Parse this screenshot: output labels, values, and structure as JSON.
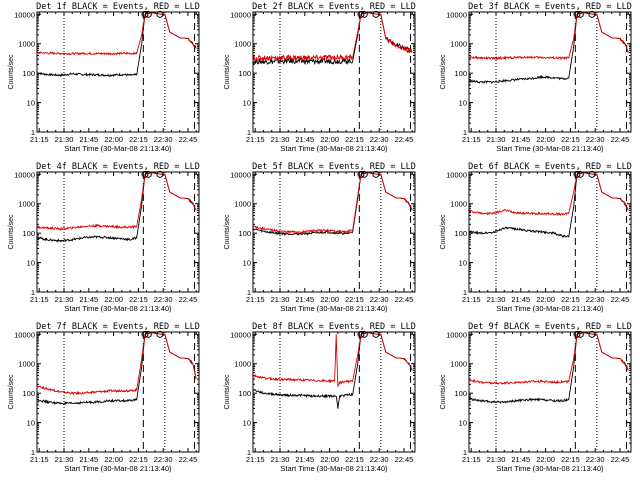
{
  "common": {
    "xlabel": "Start Time (30-Mar-08 21:13:40)",
    "ylabel": "Counts/sec",
    "xticks": [
      "21:15",
      "21:30",
      "21:45",
      "22:00",
      "22:15",
      "22:30",
      "22:45"
    ],
    "yticks": [
      "1",
      "10",
      "100",
      "1000",
      "10000"
    ],
    "xlim": [
      "21:13:40",
      "22:51:40"
    ],
    "ylim": [
      1,
      12000
    ],
    "yscale": "log",
    "series_colors": {
      "events": "#000000",
      "lld": "#e00000"
    }
  },
  "chart_data": [
    {
      "type": "line",
      "title": "Det 1f BLACK = Events, RED = LLD",
      "series": [
        {
          "color": "#000000",
          "x": [
            "21:14",
            "21:20",
            "21:28",
            "21:35",
            "21:42",
            "21:50",
            "21:58",
            "22:05",
            "22:10",
            "22:14",
            "22:17",
            "22:19",
            "22:22",
            "22:25",
            "22:29",
            "22:31",
            "22:34",
            "22:40",
            "22:45",
            "22:48",
            "22:50"
          ],
          "values": [
            100,
            90,
            85,
            95,
            90,
            88,
            85,
            90,
            85,
            88,
            1000,
            10000,
            11000,
            11000,
            10000,
            10000,
            2500,
            1600,
            1500,
            1000,
            700
          ]
        },
        {
          "color": "#e00000",
          "x": [
            "21:14",
            "21:20",
            "21:28",
            "21:35",
            "21:42",
            "21:50",
            "21:58",
            "22:05",
            "22:10",
            "22:14",
            "22:17",
            "22:19",
            "22:22",
            "22:25",
            "22:29",
            "22:31",
            "22:34",
            "22:40",
            "22:45",
            "22:48",
            "22:50"
          ],
          "values": [
            500,
            480,
            470,
            460,
            470,
            465,
            460,
            470,
            470,
            470,
            2000,
            10000,
            11000,
            11000,
            10000,
            10000,
            2500,
            1600,
            1500,
            1000,
            700
          ]
        }
      ]
    },
    {
      "type": "line",
      "title": "Det 2f BLACK = Events, RED = LLD",
      "series": [
        {
          "color": "#000000",
          "x": [
            "21:14",
            "21:20",
            "21:28",
            "21:35",
            "21:42",
            "21:50",
            "21:58",
            "22:05",
            "22:10",
            "22:14",
            "22:17",
            "22:19",
            "22:22",
            "22:25",
            "22:29",
            "22:31",
            "22:34",
            "22:40",
            "22:45",
            "22:48",
            "22:50"
          ],
          "values": [
            250,
            250,
            250,
            260,
            255,
            250,
            255,
            260,
            255,
            260,
            2000,
            10000,
            11000,
            11000,
            10000,
            10000,
            1500,
            900,
            700,
            600,
            500
          ]
        },
        {
          "color": "#e00000",
          "x": [
            "21:14",
            "21:20",
            "21:28",
            "21:35",
            "21:42",
            "21:50",
            "21:58",
            "22:05",
            "22:10",
            "22:14",
            "22:17",
            "22:19",
            "22:22",
            "22:25",
            "22:29",
            "22:31",
            "22:34",
            "22:40",
            "22:45",
            "22:48",
            "22:50"
          ],
          "values": [
            320,
            330,
            330,
            340,
            335,
            330,
            340,
            345,
            340,
            345,
            2500,
            10000,
            11000,
            11000,
            10000,
            10000,
            1500,
            900,
            700,
            600,
            500
          ]
        }
      ]
    },
    {
      "type": "line",
      "title": "Det 3f BLACK = Events, RED = LLD",
      "series": [
        {
          "color": "#000000",
          "x": [
            "21:14",
            "21:20",
            "21:28",
            "21:35",
            "21:42",
            "21:50",
            "21:58",
            "22:05",
            "22:10",
            "22:14",
            "22:17",
            "22:19",
            "22:22",
            "22:25",
            "22:29",
            "22:31",
            "22:34",
            "22:40",
            "22:45",
            "22:48",
            "22:50"
          ],
          "values": [
            55,
            50,
            50,
            55,
            60,
            65,
            75,
            70,
            65,
            68,
            800,
            10000,
            11000,
            11000,
            10000,
            10000,
            2500,
            1600,
            1500,
            1000,
            500
          ]
        },
        {
          "color": "#e00000",
          "x": [
            "21:14",
            "21:20",
            "21:28",
            "21:35",
            "21:42",
            "21:50",
            "21:58",
            "22:05",
            "22:10",
            "22:14",
            "22:17",
            "22:19",
            "22:22",
            "22:25",
            "22:29",
            "22:31",
            "22:34",
            "22:40",
            "22:45",
            "22:48",
            "22:50"
          ],
          "values": [
            350,
            330,
            320,
            330,
            340,
            350,
            340,
            330,
            320,
            330,
            1500,
            10000,
            11000,
            11000,
            10000,
            10000,
            2500,
            1600,
            1500,
            1000,
            500
          ]
        }
      ]
    },
    {
      "type": "line",
      "title": "Det 4f BLACK = Events, RED = LLD",
      "series": [
        {
          "color": "#000000",
          "x": [
            "21:14",
            "21:20",
            "21:28",
            "21:35",
            "21:42",
            "21:50",
            "21:58",
            "22:05",
            "22:10",
            "22:14",
            "22:17",
            "22:19",
            "22:22",
            "22:25",
            "22:29",
            "22:31",
            "22:34",
            "22:40",
            "22:45",
            "22:48",
            "22:50"
          ],
          "values": [
            70,
            60,
            55,
            60,
            70,
            75,
            70,
            65,
            60,
            70,
            900,
            10000,
            11000,
            11000,
            10000,
            10000,
            2500,
            1600,
            1500,
            1000,
            600
          ]
        },
        {
          "color": "#e00000",
          "x": [
            "21:14",
            "21:20",
            "21:28",
            "21:35",
            "21:42",
            "21:50",
            "21:58",
            "22:05",
            "22:10",
            "22:14",
            "22:17",
            "22:19",
            "22:22",
            "22:25",
            "22:29",
            "22:31",
            "22:34",
            "22:40",
            "22:45",
            "22:48",
            "22:50"
          ],
          "values": [
            160,
            150,
            140,
            150,
            170,
            180,
            170,
            160,
            160,
            170,
            1500,
            10000,
            11000,
            11000,
            10000,
            10000,
            2500,
            1600,
            1500,
            1000,
            600
          ]
        }
      ]
    },
    {
      "type": "line",
      "title": "Det 5f BLACK = Events, RED = LLD",
      "series": [
        {
          "color": "#000000",
          "x": [
            "21:14",
            "21:20",
            "21:28",
            "21:35",
            "21:42",
            "21:50",
            "21:58",
            "22:05",
            "22:10",
            "22:14",
            "22:17",
            "22:19",
            "22:22",
            "22:25",
            "22:29",
            "22:31",
            "22:34",
            "22:40",
            "22:45",
            "22:48",
            "22:50"
          ],
          "values": [
            140,
            115,
            100,
            95,
            95,
            100,
            110,
            100,
            95,
            110,
            1500,
            10000,
            11000,
            11000,
            10000,
            10000,
            2500,
            1600,
            1500,
            1000,
            600
          ]
        },
        {
          "color": "#e00000",
          "x": [
            "21:14",
            "21:20",
            "21:28",
            "21:35",
            "21:42",
            "21:50",
            "21:58",
            "22:05",
            "22:10",
            "22:14",
            "22:17",
            "22:19",
            "22:22",
            "22:25",
            "22:29",
            "22:31",
            "22:34",
            "22:40",
            "22:45",
            "22:48",
            "22:50"
          ],
          "values": [
            170,
            140,
            120,
            110,
            110,
            120,
            125,
            115,
            110,
            130,
            1800,
            10000,
            11000,
            11000,
            10000,
            10000,
            2500,
            1600,
            1500,
            1000,
            600
          ]
        }
      ]
    },
    {
      "type": "line",
      "title": "Det 6f BLACK = Events, RED = LLD",
      "series": [
        {
          "color": "#000000",
          "x": [
            "21:14",
            "21:20",
            "21:28",
            "21:35",
            "21:42",
            "21:50",
            "21:58",
            "22:05",
            "22:10",
            "22:14",
            "22:17",
            "22:19",
            "22:22",
            "22:25",
            "22:29",
            "22:31",
            "22:34",
            "22:40",
            "22:45",
            "22:48",
            "22:50"
          ],
          "values": [
            110,
            100,
            105,
            150,
            140,
            120,
            110,
            100,
            80,
            75,
            800,
            10000,
            11000,
            11000,
            10000,
            10000,
            2500,
            1600,
            1500,
            1000,
            600
          ]
        },
        {
          "color": "#e00000",
          "x": [
            "21:14",
            "21:20",
            "21:28",
            "21:35",
            "21:42",
            "21:50",
            "21:58",
            "22:05",
            "22:10",
            "22:14",
            "22:17",
            "22:19",
            "22:22",
            "22:25",
            "22:29",
            "22:31",
            "22:34",
            "22:40",
            "22:45",
            "22:48",
            "22:50"
          ],
          "values": [
            550,
            480,
            460,
            600,
            490,
            470,
            460,
            450,
            440,
            470,
            2500,
            10000,
            11000,
            11000,
            10000,
            10000,
            2500,
            1600,
            1500,
            1000,
            600
          ]
        }
      ]
    },
    {
      "type": "line",
      "title": "Det 7f BLACK = Events, RED = LLD",
      "series": [
        {
          "color": "#000000",
          "x": [
            "21:14",
            "21:20",
            "21:28",
            "21:35",
            "21:42",
            "21:50",
            "21:58",
            "22:05",
            "22:10",
            "22:14",
            "22:17",
            "22:19",
            "22:22",
            "22:25",
            "22:29",
            "22:31",
            "22:34",
            "22:40",
            "22:45",
            "22:48",
            "22:50"
          ],
          "values": [
            60,
            50,
            45,
            45,
            48,
            50,
            55,
            55,
            55,
            60,
            800,
            10000,
            11000,
            11000,
            10000,
            10000,
            2500,
            1600,
            1500,
            1000,
            300
          ]
        },
        {
          "color": "#e00000",
          "x": [
            "21:14",
            "21:20",
            "21:28",
            "21:35",
            "21:42",
            "21:50",
            "21:58",
            "22:05",
            "22:10",
            "22:14",
            "22:17",
            "22:19",
            "22:22",
            "22:25",
            "22:29",
            "22:31",
            "22:34",
            "22:40",
            "22:45",
            "22:48",
            "22:50"
          ],
          "values": [
            170,
            140,
            110,
            100,
            100,
            110,
            120,
            120,
            120,
            130,
            1500,
            10000,
            11000,
            11000,
            10000,
            10000,
            2500,
            1600,
            1500,
            1000,
            300
          ]
        }
      ]
    },
    {
      "type": "line",
      "title": "Det 8f BLACK = Events, RED = LLD",
      "series": [
        {
          "color": "#000000",
          "x": [
            "21:14",
            "21:20",
            "21:28",
            "21:35",
            "21:42",
            "21:50",
            "21:58",
            "22:04",
            "22:05",
            "22:06",
            "22:10",
            "22:14",
            "22:17",
            "22:19",
            "22:22",
            "22:25",
            "22:29",
            "22:31",
            "22:34",
            "22:40",
            "22:45",
            "22:48",
            "22:50"
          ],
          "values": [
            130,
            100,
            90,
            85,
            85,
            80,
            80,
            80,
            30,
            80,
            85,
            90,
            1000,
            10000,
            11000,
            11000,
            10000,
            10000,
            2500,
            1600,
            1500,
            1000,
            600
          ]
        },
        {
          "color": "#e00000",
          "x": [
            "21:14",
            "21:20",
            "21:28",
            "21:35",
            "21:42",
            "21:50",
            "21:58",
            "22:03",
            "22:04",
            "22:05",
            "22:06",
            "22:10",
            "22:14",
            "22:17",
            "22:19",
            "22:22",
            "22:25",
            "22:29",
            "22:31",
            "22:34",
            "22:40",
            "22:45",
            "22:48",
            "22:50"
          ],
          "values": [
            400,
            330,
            300,
            290,
            280,
            270,
            260,
            260,
            10000,
            170,
            230,
            250,
            260,
            2000,
            10000,
            11000,
            11000,
            10000,
            10000,
            2500,
            1600,
            1500,
            1000,
            600
          ]
        }
      ]
    },
    {
      "type": "line",
      "title": "Det 9f BLACK = Events, RED = LLD",
      "series": [
        {
          "color": "#000000",
          "x": [
            "21:14",
            "21:20",
            "21:28",
            "21:35",
            "21:42",
            "21:50",
            "21:58",
            "22:05",
            "22:10",
            "22:14",
            "22:17",
            "22:19",
            "22:22",
            "22:25",
            "22:29",
            "22:31",
            "22:34",
            "22:40",
            "22:45",
            "22:48",
            "22:50"
          ],
          "values": [
            65,
            55,
            50,
            50,
            55,
            60,
            60,
            55,
            55,
            60,
            800,
            10000,
            11000,
            11000,
            10000,
            10000,
            2500,
            1600,
            1500,
            1000,
            600
          ]
        },
        {
          "color": "#e00000",
          "x": [
            "21:14",
            "21:20",
            "21:28",
            "21:35",
            "21:42",
            "21:50",
            "21:58",
            "22:05",
            "22:10",
            "22:14",
            "22:17",
            "22:19",
            "22:22",
            "22:25",
            "22:29",
            "22:31",
            "22:34",
            "22:40",
            "22:45",
            "22:48",
            "22:50"
          ],
          "values": [
            280,
            240,
            220,
            220,
            230,
            250,
            250,
            240,
            240,
            250,
            1500,
            10000,
            11000,
            11000,
            10000,
            10000,
            2500,
            1600,
            1500,
            1000,
            600
          ]
        }
      ]
    }
  ]
}
